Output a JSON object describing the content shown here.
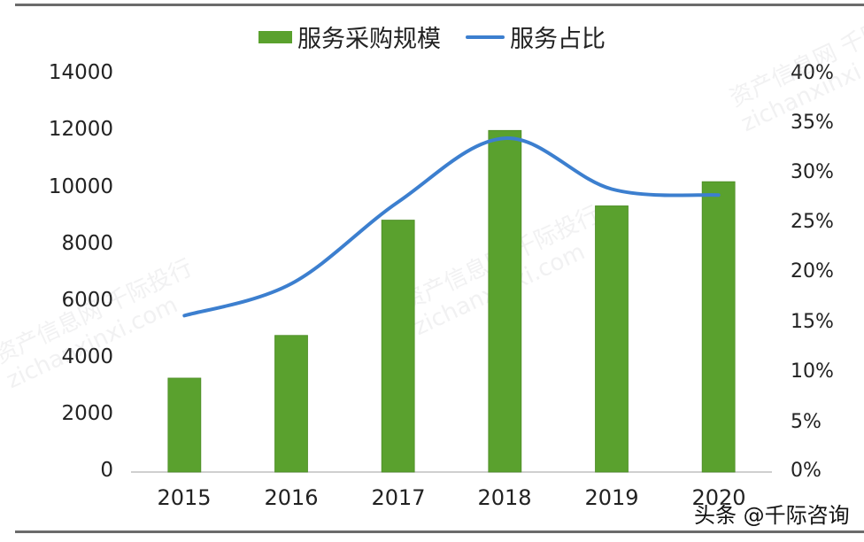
{
  "legend": {
    "bar_label": "服务采购规模",
    "line_label": "服务占比"
  },
  "colors": {
    "bar": "#5aa12e",
    "line": "#3c7fcf",
    "axis": "#bfbfbf",
    "frame": "#6b6b6b"
  },
  "axes": {
    "left_ticks": [
      "0",
      "2000",
      "4000",
      "6000",
      "8000",
      "10000",
      "12000",
      "14000"
    ],
    "right_ticks": [
      "0%",
      "5%",
      "10%",
      "15%",
      "20%",
      "25%",
      "30%",
      "35%",
      "40%"
    ],
    "x_ticks": [
      "2015",
      "2016",
      "2017",
      "2018",
      "2019",
      "2020"
    ]
  },
  "watermark": {
    "line1": "资产信息网 千际投行",
    "line2": "zichanxinxi.com"
  },
  "credit": "头条 @千际咨询",
  "chart_data": {
    "type": "bar",
    "title": "",
    "categories": [
      "2015",
      "2016",
      "2017",
      "2018",
      "2019",
      "2020"
    ],
    "series": [
      {
        "name": "服务采购规模",
        "type": "bar",
        "axis": "left",
        "values": [
          3300,
          4800,
          8850,
          12000,
          9350,
          10200
        ]
      },
      {
        "name": "服务占比",
        "type": "line",
        "axis": "right",
        "smooth": true,
        "values": [
          15.7,
          18.9,
          27.1,
          33.5,
          28.4,
          27.8
        ],
        "unit": "%"
      }
    ],
    "xlabel": "",
    "ylabel": "",
    "ylim": [
      0,
      14000
    ],
    "y2lim": [
      0,
      40
    ],
    "grid": false,
    "legend_position": "top"
  }
}
